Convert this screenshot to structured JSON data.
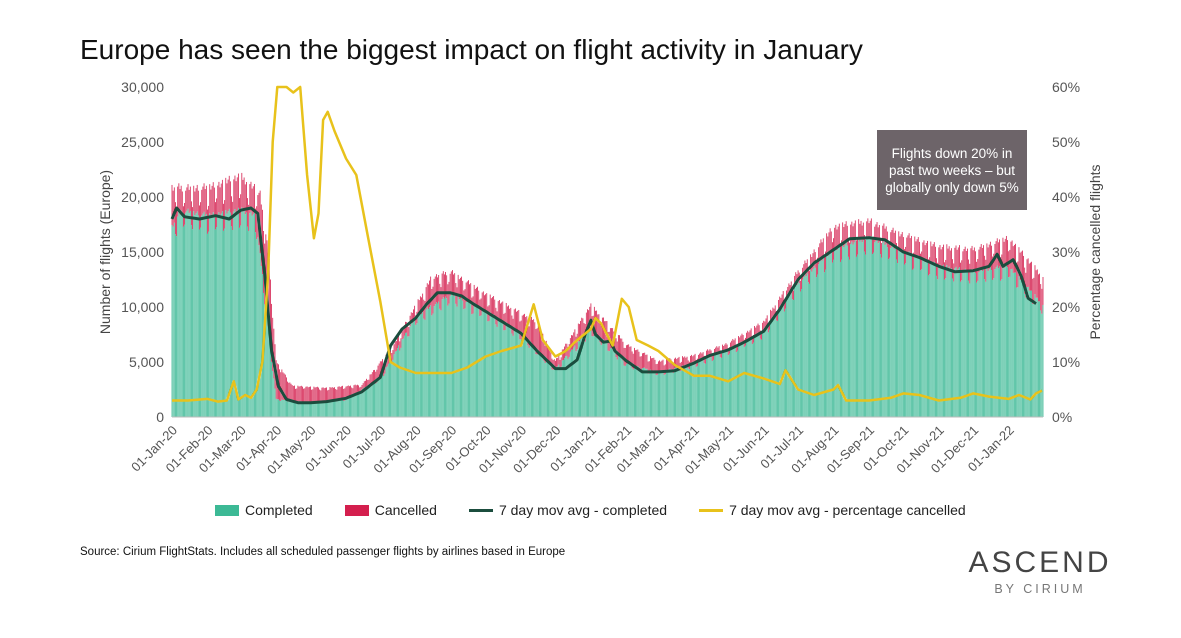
{
  "title": "Europe has seen the biggest impact on flight activity in January",
  "source": "Source: Cirium FlightStats. Includes all scheduled passenger flights by airlines based in Europe",
  "brand": {
    "main": "ASCEND",
    "sub": "BY CIRIUM"
  },
  "annotation": "Flights down 20% in past two weeks – but globally only down 5%",
  "colors": {
    "completed": "#3cb995",
    "cancelled": "#d41f4e",
    "avg_completed": "#1b4d3e",
    "avg_pct_cancelled": "#e8c21b",
    "annotation_bg": "#6d6469"
  },
  "legend": {
    "completed": "Completed",
    "cancelled": "Cancelled",
    "avg_completed": "7 day mov avg - completed",
    "avg_pct": "7 day mov avg - percentage cancelled"
  },
  "chart_data": {
    "type": "bar",
    "title": "Europe has seen the biggest impact on flight activity in January",
    "ylabel": "Number of flights (Europe)",
    "y2label": "Percentage cancelled flights",
    "ylim": [
      0,
      30000
    ],
    "y2lim": [
      0,
      60
    ],
    "yticks": [
      "0",
      "5,000",
      "10,000",
      "15,000",
      "20,000",
      "25,000",
      "30,000"
    ],
    "y2ticks": [
      "0%",
      "10%",
      "20%",
      "30%",
      "40%",
      "50%",
      "60%"
    ],
    "x_start": "2020-01-01",
    "x_end": "2022-01-31",
    "xtick_labels": [
      "01-Jan-20",
      "01-Feb-20",
      "01-Mar-20",
      "01-Apr-20",
      "01-May-20",
      "01-Jun-20",
      "01-Jul-20",
      "01-Aug-20",
      "01-Sep-20",
      "01-Oct-20",
      "01-Nov-20",
      "01-Dec-20",
      "01-Jan-21",
      "01-Feb-21",
      "01-Mar-21",
      "01-Apr-21",
      "01-May-21",
      "01-Jun-21",
      "01-Jul-21",
      "01-Aug-21",
      "01-Sep-21",
      "01-Oct-21",
      "01-Nov-21",
      "01-Dec-21",
      "01-Jan-22"
    ],
    "xtick_dates": [
      "2020-01-01",
      "2020-02-01",
      "2020-03-01",
      "2020-04-01",
      "2020-05-01",
      "2020-06-01",
      "2020-07-01",
      "2020-08-01",
      "2020-09-01",
      "2020-10-01",
      "2020-11-01",
      "2020-12-01",
      "2021-01-01",
      "2021-02-01",
      "2021-03-01",
      "2021-04-01",
      "2021-05-01",
      "2021-06-01",
      "2021-07-01",
      "2021-08-01",
      "2021-09-01",
      "2021-10-01",
      "2021-11-01",
      "2021-12-01",
      "2022-01-01"
    ],
    "series": [
      {
        "name": "7 day mov avg - completed",
        "kind": "line",
        "axis": "left",
        "points": [
          [
            "2020-01-01",
            18000
          ],
          [
            "2020-01-05",
            19000
          ],
          [
            "2020-01-12",
            18200
          ],
          [
            "2020-01-25",
            18000
          ],
          [
            "2020-02-08",
            18300
          ],
          [
            "2020-02-20",
            18000
          ],
          [
            "2020-03-01",
            18800
          ],
          [
            "2020-03-10",
            19000
          ],
          [
            "2020-03-16",
            18500
          ],
          [
            "2020-03-22",
            13000
          ],
          [
            "2020-03-28",
            6000
          ],
          [
            "2020-04-03",
            2800
          ],
          [
            "2020-04-10",
            1600
          ],
          [
            "2020-04-20",
            1300
          ],
          [
            "2020-05-01",
            1300
          ],
          [
            "2020-05-15",
            1400
          ],
          [
            "2020-06-01",
            1700
          ],
          [
            "2020-06-15",
            2300
          ],
          [
            "2020-07-01",
            3600
          ],
          [
            "2020-07-10",
            6500
          ],
          [
            "2020-07-20",
            8000
          ],
          [
            "2020-08-01",
            9000
          ],
          [
            "2020-08-10",
            10200
          ],
          [
            "2020-08-20",
            11300
          ],
          [
            "2020-08-31",
            11300
          ],
          [
            "2020-09-10",
            11000
          ],
          [
            "2020-09-20",
            10300
          ],
          [
            "2020-10-01",
            9600
          ],
          [
            "2020-10-15",
            8700
          ],
          [
            "2020-11-01",
            7600
          ],
          [
            "2020-11-15",
            6000
          ],
          [
            "2020-12-01",
            4400
          ],
          [
            "2020-12-10",
            4400
          ],
          [
            "2020-12-20",
            5200
          ],
          [
            "2020-12-27",
            7500
          ],
          [
            "2021-01-01",
            8800
          ],
          [
            "2021-01-05",
            7500
          ],
          [
            "2021-01-12",
            6800
          ],
          [
            "2021-01-18",
            6900
          ],
          [
            "2021-01-22",
            6000
          ],
          [
            "2021-02-01",
            5100
          ],
          [
            "2021-02-15",
            4100
          ],
          [
            "2021-03-01",
            4100
          ],
          [
            "2021-03-15",
            4200
          ],
          [
            "2021-04-01",
            4900
          ],
          [
            "2021-04-15",
            5600
          ],
          [
            "2021-05-01",
            6100
          ],
          [
            "2021-05-15",
            6800
          ],
          [
            "2021-06-01",
            7800
          ],
          [
            "2021-06-15",
            9800
          ],
          [
            "2021-07-01",
            12500
          ],
          [
            "2021-07-15",
            14000
          ],
          [
            "2021-08-01",
            15200
          ],
          [
            "2021-08-15",
            16200
          ],
          [
            "2021-09-01",
            16300
          ],
          [
            "2021-09-15",
            16100
          ],
          [
            "2021-10-01",
            15000
          ],
          [
            "2021-10-15",
            14500
          ],
          [
            "2021-11-01",
            13700
          ],
          [
            "2021-11-15",
            13200
          ],
          [
            "2021-12-01",
            13300
          ],
          [
            "2021-12-15",
            13700
          ],
          [
            "2021-12-22",
            14800
          ],
          [
            "2021-12-27",
            13700
          ],
          [
            "2022-01-05",
            14300
          ],
          [
            "2022-01-12",
            12800
          ],
          [
            "2022-01-18",
            10800
          ],
          [
            "2022-01-25",
            10300
          ]
        ]
      },
      {
        "name": "7 day mov avg - percentage cancelled",
        "kind": "line",
        "axis": "right",
        "points": [
          [
            "2020-01-01",
            3
          ],
          [
            "2020-01-15",
            3
          ],
          [
            "2020-02-01",
            3.3
          ],
          [
            "2020-02-10",
            2.8
          ],
          [
            "2020-02-18",
            3
          ],
          [
            "2020-02-24",
            6.5
          ],
          [
            "2020-02-28",
            3.2
          ],
          [
            "2020-03-05",
            4
          ],
          [
            "2020-03-10",
            3.5
          ],
          [
            "2020-03-15",
            5
          ],
          [
            "2020-03-20",
            10
          ],
          [
            "2020-03-25",
            26
          ],
          [
            "2020-03-29",
            50
          ],
          [
            "2020-04-02",
            60
          ],
          [
            "2020-04-06",
            60
          ],
          [
            "2020-04-10",
            60
          ],
          [
            "2020-04-16",
            59
          ],
          [
            "2020-04-22",
            60
          ],
          [
            "2020-04-28",
            44
          ],
          [
            "2020-05-04",
            32.5
          ],
          [
            "2020-05-08",
            37
          ],
          [
            "2020-05-12",
            54
          ],
          [
            "2020-05-16",
            55.5
          ],
          [
            "2020-05-22",
            52
          ],
          [
            "2020-06-01",
            47
          ],
          [
            "2020-06-10",
            44
          ],
          [
            "2020-06-20",
            33
          ],
          [
            "2020-07-01",
            21
          ],
          [
            "2020-07-10",
            10
          ],
          [
            "2020-07-18",
            9
          ],
          [
            "2020-08-01",
            8
          ],
          [
            "2020-08-15",
            8
          ],
          [
            "2020-09-01",
            8
          ],
          [
            "2020-09-15",
            9
          ],
          [
            "2020-10-01",
            11
          ],
          [
            "2020-10-15",
            12
          ],
          [
            "2020-11-01",
            13
          ],
          [
            "2020-11-12",
            20.5
          ],
          [
            "2020-11-20",
            14
          ],
          [
            "2020-12-01",
            11
          ],
          [
            "2020-12-10",
            12
          ],
          [
            "2020-12-20",
            14
          ],
          [
            "2021-01-01",
            16
          ],
          [
            "2021-01-05",
            18
          ],
          [
            "2021-01-10",
            17
          ],
          [
            "2021-01-20",
            13
          ],
          [
            "2021-01-28",
            21.5
          ],
          [
            "2021-02-03",
            20
          ],
          [
            "2021-02-10",
            14
          ],
          [
            "2021-02-20",
            13
          ],
          [
            "2021-03-01",
            12
          ],
          [
            "2021-03-15",
            9.5
          ],
          [
            "2021-04-01",
            7.5
          ],
          [
            "2021-04-15",
            7.5
          ],
          [
            "2021-05-01",
            6.5
          ],
          [
            "2021-05-15",
            8
          ],
          [
            "2021-06-01",
            7
          ],
          [
            "2021-06-15",
            6
          ],
          [
            "2021-06-20",
            8.5
          ],
          [
            "2021-07-01",
            5
          ],
          [
            "2021-07-15",
            4
          ],
          [
            "2021-08-01",
            5
          ],
          [
            "2021-08-05",
            5.8
          ],
          [
            "2021-08-12",
            3
          ],
          [
            "2021-09-01",
            3
          ],
          [
            "2021-09-20",
            3.5
          ],
          [
            "2021-10-01",
            4.3
          ],
          [
            "2021-10-15",
            4
          ],
          [
            "2021-11-01",
            3
          ],
          [
            "2021-11-20",
            3.5
          ],
          [
            "2021-12-01",
            4.3
          ],
          [
            "2021-12-15",
            3.7
          ],
          [
            "2022-01-01",
            3.3
          ],
          [
            "2022-01-10",
            4
          ],
          [
            "2022-01-20",
            3.2
          ],
          [
            "2022-01-25",
            4.3
          ],
          [
            "2022-01-30",
            4.8
          ]
        ]
      },
      {
        "name": "Completed",
        "kind": "bar",
        "note": "daily bars; envelope values",
        "points": [
          [
            "2020-01-01",
            17000
          ],
          [
            "2020-01-10",
            18500
          ],
          [
            "2020-02-01",
            18000
          ],
          [
            "2020-03-01",
            18500
          ],
          [
            "2020-03-14",
            18000
          ],
          [
            "2020-03-22",
            11000
          ],
          [
            "2020-04-01",
            1600
          ],
          [
            "2020-05-01",
            1300
          ],
          [
            "2020-06-01",
            1600
          ],
          [
            "2020-07-01",
            3500
          ],
          [
            "2020-08-01",
            9000
          ],
          [
            "2020-09-01",
            11000
          ],
          [
            "2020-10-01",
            9500
          ],
          [
            "2020-11-01",
            7500
          ],
          [
            "2020-12-01",
            4300
          ],
          [
            "2021-01-01",
            8000
          ],
          [
            "2021-02-01",
            4800
          ],
          [
            "2021-03-01",
            4000
          ],
          [
            "2021-04-01",
            4800
          ],
          [
            "2021-05-01",
            6000
          ],
          [
            "2021-06-01",
            7700
          ],
          [
            "2021-07-01",
            12000
          ],
          [
            "2021-08-01",
            15000
          ],
          [
            "2021-09-01",
            16000
          ],
          [
            "2021-10-01",
            14800
          ],
          [
            "2021-11-01",
            13500
          ],
          [
            "2021-12-01",
            13000
          ],
          [
            "2022-01-01",
            13500
          ],
          [
            "2022-01-31",
            10000
          ]
        ]
      },
      {
        "name": "Cancelled",
        "kind": "bar",
        "note": "stacked on completed; envelope of total (completed + cancelled)",
        "points": [
          [
            "2020-01-01",
            20500
          ],
          [
            "2020-02-01",
            20500
          ],
          [
            "2020-03-01",
            21500
          ],
          [
            "2020-03-18",
            20000
          ],
          [
            "2020-03-26",
            14000
          ],
          [
            "2020-04-01",
            5000
          ],
          [
            "2020-04-15",
            2800
          ],
          [
            "2020-05-15",
            2600
          ],
          [
            "2020-06-15",
            2900
          ],
          [
            "2020-07-10",
            6000
          ],
          [
            "2020-08-15",
            12500
          ],
          [
            "2020-09-01",
            13000
          ],
          [
            "2020-10-01",
            11000
          ],
          [
            "2020-11-15",
            8500
          ],
          [
            "2020-12-01",
            5000
          ],
          [
            "2021-01-01",
            10000
          ],
          [
            "2021-02-01",
            6500
          ],
          [
            "2021-03-01",
            5000
          ],
          [
            "2021-04-01",
            5500
          ],
          [
            "2021-05-01",
            6600
          ],
          [
            "2021-06-01",
            8500
          ],
          [
            "2021-07-01",
            13000
          ],
          [
            "2021-08-01",
            17000
          ],
          [
            "2021-09-01",
            17500
          ],
          [
            "2021-10-01",
            16300
          ],
          [
            "2021-11-01",
            15200
          ],
          [
            "2021-12-01",
            15000
          ],
          [
            "2022-01-01",
            16000
          ],
          [
            "2022-01-31",
            12500
          ]
        ]
      }
    ]
  }
}
